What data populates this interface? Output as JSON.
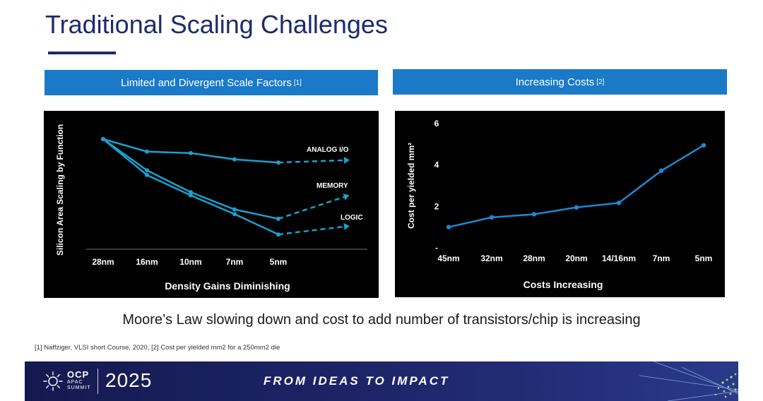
{
  "slide": {
    "title": "Traditional Scaling Challenges",
    "caption": "Moore’s Law slowing down and cost to add number of transistors/chip is increasing",
    "footnote": "[1] Naffziger, VLSI short Course, 2020, [2] Cost per yielded mm2 for a 250mm2 die"
  },
  "banners": {
    "left": {
      "label": "Limited and Divergent Scale Factors",
      "ref": "[1]"
    },
    "right": {
      "label": "Increasing Costs",
      "ref": "[2]"
    }
  },
  "colors": {
    "title": "#1f2a6b",
    "banner": "#1a7ac8",
    "panel": "#000000",
    "line": "#1aa0d0",
    "line_right": "#1e88d6"
  },
  "chart_data": [
    {
      "type": "line",
      "title": "",
      "xlabel": "Density Gains Diminishing",
      "ylabel": "Silicon Area Scaling by Function",
      "categories": [
        "28nm",
        "16nm",
        "10nm",
        "7nm",
        "5nm"
      ],
      "y_ticks_shown": false,
      "grid": false,
      "legend": "inline labels at line ends",
      "series": [
        {
          "name": "ANALOG I/O",
          "values": [
            1.0,
            0.92,
            0.91,
            0.87,
            0.85
          ],
          "projection": "dashed"
        },
        {
          "name": "MEMORY",
          "values": [
            1.0,
            0.8,
            0.66,
            0.55,
            0.49
          ],
          "projection": "dashed"
        },
        {
          "name": "LOGIC",
          "values": [
            1.0,
            0.77,
            0.64,
            0.52,
            0.39
          ],
          "projection": "dashed"
        }
      ]
    },
    {
      "type": "line",
      "title": "",
      "xlabel": "Costs Increasing",
      "ylabel": "Cost per yielded mm²",
      "categories": [
        "45nm",
        "32nm",
        "28nm",
        "20nm",
        "14/16nm",
        "7nm",
        "5nm"
      ],
      "yticks": [
        "-",
        "2",
        "4",
        "6"
      ],
      "ylim": [
        0,
        6
      ],
      "grid": false,
      "series": [
        {
          "name": "",
          "values": [
            1.0,
            1.47,
            1.62,
            1.95,
            2.17,
            3.72,
            4.95
          ]
        }
      ]
    }
  ],
  "footer": {
    "logo_text": "OCP",
    "logo_sub1": "APAC",
    "logo_sub2": "SUMMIT",
    "year": "2025",
    "tagline": "FROM IDEAS TO IMPACT",
    "logo_icon": "sunburst-logo-icon"
  }
}
